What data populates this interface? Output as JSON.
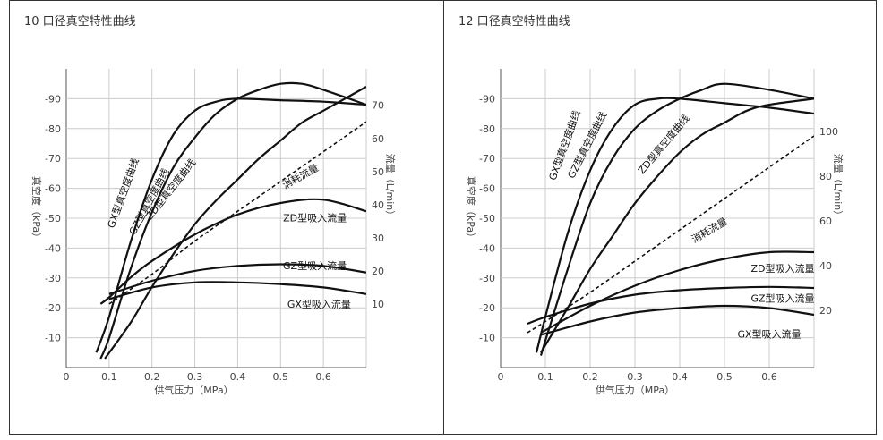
{
  "chart_data": [
    {
      "type": "line",
      "title": "10 口径真空特性曲线",
      "xlabel": "供气压力（MPa）",
      "ylabel": "真空度（kPa）",
      "y2label": "流量（L/min）",
      "xlim": [
        0,
        0.7
      ],
      "ylim": [
        0,
        -100
      ],
      "y2lim": [
        -9.2,
        81.0
      ],
      "x_ticks": [
        "0",
        "0.1",
        "0.2",
        "0.3",
        "0.4",
        "0.5",
        "0.6"
      ],
      "y_ticks": [
        "-10",
        "-20",
        "-30",
        "-40",
        "-50",
        "-60",
        "-70",
        "-80",
        "-90"
      ],
      "y2_ticks": [
        "10",
        "20",
        "30",
        "40",
        "50",
        "60",
        "70"
      ],
      "grid": true,
      "vacuum_series": [
        {
          "name": "GX型真空度曲线",
          "points": [
            [
              0.07,
              -5
            ],
            [
              0.1,
              -17
            ],
            [
              0.15,
              -42
            ],
            [
              0.2,
              -63
            ],
            [
              0.25,
              -78
            ],
            [
              0.3,
              -86
            ],
            [
              0.35,
              -89
            ],
            [
              0.4,
              -90
            ],
            [
              0.5,
              -89.5
            ],
            [
              0.6,
              -89
            ],
            [
              0.7,
              -88
            ]
          ]
        },
        {
          "name": "GZ型真空度曲线",
          "points": [
            [
              0.08,
              -3
            ],
            [
              0.1,
              -10
            ],
            [
              0.15,
              -33
            ],
            [
              0.2,
              -52
            ],
            [
              0.25,
              -67
            ],
            [
              0.3,
              -77
            ],
            [
              0.35,
              -85
            ],
            [
              0.4,
              -90
            ],
            [
              0.45,
              -93
            ],
            [
              0.5,
              -95
            ],
            [
              0.55,
              -95
            ],
            [
              0.6,
              -93
            ],
            [
              0.7,
              -88
            ]
          ]
        },
        {
          "name": "ZD型真空度曲线",
          "points": [
            [
              0.09,
              -3
            ],
            [
              0.15,
              -15
            ],
            [
              0.2,
              -27
            ],
            [
              0.25,
              -38
            ],
            [
              0.3,
              -48
            ],
            [
              0.35,
              -56
            ],
            [
              0.4,
              -63
            ],
            [
              0.45,
              -70
            ],
            [
              0.5,
              -76
            ],
            [
              0.55,
              -82
            ],
            [
              0.6,
              -86
            ],
            [
              0.65,
              -90
            ],
            [
              0.7,
              -94
            ]
          ]
        }
      ],
      "flow_series": [
        {
          "name": "消耗流量",
          "dashed": true,
          "points": [
            [
              0.1,
              10
            ],
            [
              0.2,
              19
            ],
            [
              0.3,
              29
            ],
            [
              0.4,
              38
            ],
            [
              0.5,
              47
            ],
            [
              0.6,
              56
            ],
            [
              0.7,
              65
            ]
          ]
        },
        {
          "name": "ZD型吸入流量",
          "points": [
            [
              0.08,
              10
            ],
            [
              0.1,
              12
            ],
            [
              0.15,
              18
            ],
            [
              0.2,
              23
            ],
            [
              0.3,
              31
            ],
            [
              0.4,
              37
            ],
            [
              0.5,
              40.5
            ],
            [
              0.6,
              41.5
            ],
            [
              0.7,
              38
            ]
          ]
        },
        {
          "name": "GZ型吸入流量",
          "points": [
            [
              0.1,
              13
            ],
            [
              0.2,
              17
            ],
            [
              0.3,
              20
            ],
            [
              0.4,
              21.5
            ],
            [
              0.5,
              22
            ],
            [
              0.6,
              21.5
            ],
            [
              0.7,
              19.5
            ]
          ]
        },
        {
          "name": "GX型吸入流量",
          "points": [
            [
              0.1,
              11.5
            ],
            [
              0.2,
              15
            ],
            [
              0.3,
              16.5
            ],
            [
              0.4,
              16.5
            ],
            [
              0.5,
              16
            ],
            [
              0.6,
              15
            ],
            [
              0.7,
              13
            ]
          ]
        }
      ]
    },
    {
      "type": "line",
      "title": "12 口径真空特性曲线",
      "xlabel": "供气压力（MPa）",
      "ylabel": "真空度（kPa）",
      "y2label": "流量（L/min）",
      "xlim": [
        0,
        0.7
      ],
      "ylim": [
        0,
        -100
      ],
      "y2lim": [
        -5.6,
        128.0
      ],
      "x_ticks": [
        "0",
        "0.1",
        "0.2",
        "0.3",
        "0.4",
        "0.5",
        "0.6"
      ],
      "y_ticks": [
        "-10",
        "-20",
        "-30",
        "-40",
        "-50",
        "-60",
        "-70",
        "-80",
        "-90"
      ],
      "y2_ticks": [
        "20",
        "40",
        "60",
        "80",
        "100"
      ],
      "grid": true,
      "vacuum_series": [
        {
          "name": "GX型真空度曲线",
          "points": [
            [
              0.08,
              -5
            ],
            [
              0.1,
              -17
            ],
            [
              0.15,
              -45
            ],
            [
              0.2,
              -66
            ],
            [
              0.25,
              -80
            ],
            [
              0.3,
              -88
            ],
            [
              0.35,
              -90
            ],
            [
              0.4,
              -90
            ],
            [
              0.5,
              -88.5
            ],
            [
              0.6,
              -87
            ],
            [
              0.7,
              -85
            ]
          ]
        },
        {
          "name": "GZ型真空度曲线",
          "points": [
            [
              0.09,
              -4
            ],
            [
              0.1,
              -9
            ],
            [
              0.15,
              -33
            ],
            [
              0.2,
              -55
            ],
            [
              0.25,
              -70
            ],
            [
              0.3,
              -80
            ],
            [
              0.35,
              -86
            ],
            [
              0.4,
              -90
            ],
            [
              0.45,
              -93
            ],
            [
              0.5,
              -95
            ],
            [
              0.6,
              -93
            ],
            [
              0.7,
              -90
            ]
          ]
        },
        {
          "name": "ZD型真空度曲线",
          "points": [
            [
              0.09,
              -5
            ],
            [
              0.15,
              -20
            ],
            [
              0.2,
              -33
            ],
            [
              0.25,
              -44
            ],
            [
              0.3,
              -55
            ],
            [
              0.35,
              -64
            ],
            [
              0.4,
              -72
            ],
            [
              0.45,
              -78
            ],
            [
              0.5,
              -82
            ],
            [
              0.55,
              -86
            ],
            [
              0.6,
              -88
            ],
            [
              0.7,
              -90
            ]
          ]
        }
      ],
      "flow_series": [
        {
          "name": "消耗流量",
          "dashed": true,
          "points": [
            [
              0.06,
              10
            ],
            [
              0.1,
              15
            ],
            [
              0.2,
              28
            ],
            [
              0.3,
              42
            ],
            [
              0.4,
              56
            ],
            [
              0.5,
              70
            ],
            [
              0.6,
              84
            ],
            [
              0.7,
              98
            ]
          ]
        },
        {
          "name": "ZD型吸入流量",
          "points": [
            [
              0.09,
              10
            ],
            [
              0.2,
              22
            ],
            [
              0.3,
              31
            ],
            [
              0.4,
              38
            ],
            [
              0.5,
              43
            ],
            [
              0.6,
              46
            ],
            [
              0.7,
              46
            ]
          ]
        },
        {
          "name": "GZ型吸入流量",
          "points": [
            [
              0.06,
              14
            ],
            [
              0.1,
              17
            ],
            [
              0.2,
              23
            ],
            [
              0.3,
              27
            ],
            [
              0.4,
              29
            ],
            [
              0.5,
              30
            ],
            [
              0.6,
              30.5
            ],
            [
              0.7,
              30
            ]
          ]
        },
        {
          "name": "GX型吸入流量",
          "points": [
            [
              0.09,
              9
            ],
            [
              0.2,
              15
            ],
            [
              0.3,
              19
            ],
            [
              0.4,
              21
            ],
            [
              0.5,
              22
            ],
            [
              0.6,
              21
            ],
            [
              0.7,
              18
            ]
          ]
        }
      ]
    }
  ]
}
